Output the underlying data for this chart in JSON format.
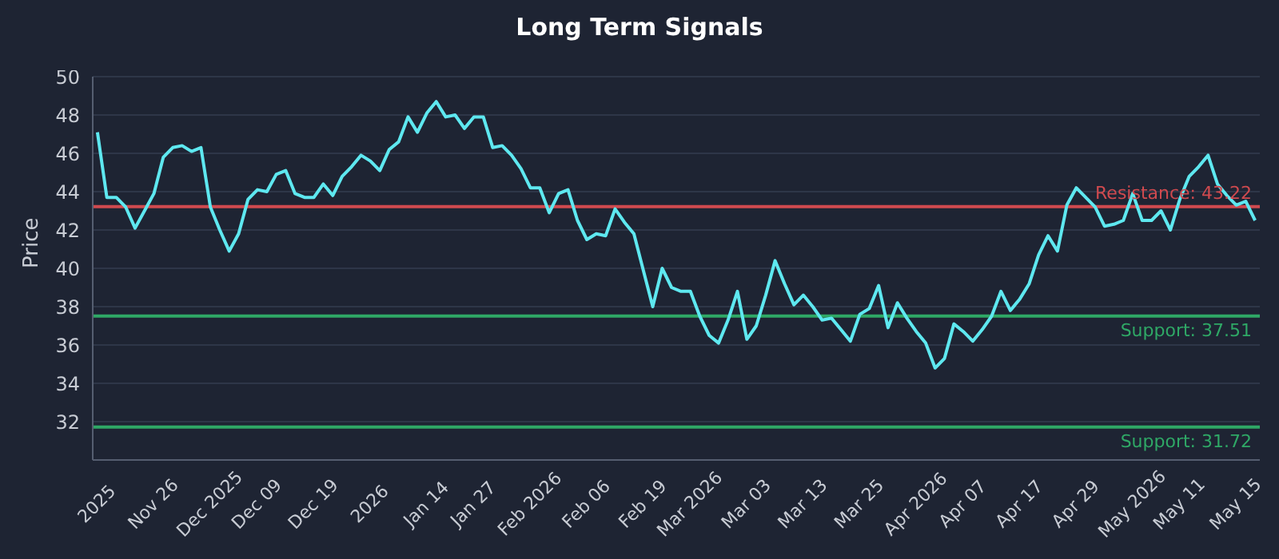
{
  "chart_data": {
    "type": "line",
    "title": "Long Term Signals",
    "ylabel": "Price",
    "categories": [
      "2025",
      null,
      null,
      null,
      null,
      null,
      "Nov 26",
      null,
      null,
      null,
      null,
      null,
      "Dec 2025",
      null,
      null,
      null,
      null,
      "Dec 09",
      null,
      null,
      null,
      null,
      null,
      "Dec 19",
      null,
      null,
      null,
      null,
      null,
      "2026",
      null,
      null,
      null,
      null,
      null,
      "Jan 14",
      null,
      null,
      null,
      null,
      "Jan 27",
      null,
      null,
      null,
      null,
      null,
      "Feb 2026",
      null,
      null,
      null,
      null,
      null,
      "Feb 06",
      null,
      null,
      null,
      null,
      null,
      "Feb 19",
      null,
      null,
      null,
      null,
      "Mar 2026",
      null,
      null,
      null,
      null,
      null,
      "Mar 03",
      null,
      null,
      null,
      null,
      null,
      "Mar 13",
      null,
      null,
      null,
      null,
      null,
      "Mar 25",
      null,
      null,
      null,
      null,
      null,
      "Apr 2026",
      null,
      null,
      null,
      null,
      "Apr 07",
      null,
      null,
      null,
      null,
      null,
      "Apr 17",
      null,
      null,
      null,
      null,
      null,
      "Apr 29",
      null,
      null,
      null,
      null,
      null,
      "May 2026",
      null,
      null,
      null,
      null,
      "May 11",
      null,
      null,
      null,
      null,
      null,
      "May 15",
      null,
      null
    ],
    "series": [
      {
        "color": "#5ee8f0",
        "values": [
          47.1,
          43.7,
          43.7,
          43.2,
          42.1,
          43.0,
          43.9,
          45.8,
          46.3,
          46.4,
          46.1,
          46.3,
          43.2,
          42.0,
          40.9,
          41.8,
          43.6,
          44.1,
          44.0,
          44.9,
          45.1,
          43.9,
          43.7,
          43.7,
          44.4,
          43.8,
          44.8,
          45.3,
          45.9,
          45.6,
          45.1,
          46.2,
          46.6,
          47.9,
          47.1,
          48.1,
          48.7,
          47.9,
          48.0,
          47.3,
          47.9,
          47.9,
          46.3,
          46.4,
          45.9,
          45.2,
          44.2,
          44.2,
          42.9,
          43.9,
          44.1,
          42.5,
          41.5,
          41.8,
          41.7,
          43.1,
          42.4,
          41.8,
          39.9,
          38.0,
          40.0,
          39.0,
          38.8,
          38.8,
          37.5,
          36.5,
          36.1,
          37.3,
          38.8,
          36.3,
          37.0,
          38.6,
          40.4,
          39.2,
          38.1,
          38.6,
          38.0,
          37.3,
          37.4,
          36.8,
          36.2,
          37.6,
          37.9,
          39.1,
          36.9,
          38.2,
          37.4,
          36.7,
          36.1,
          34.8,
          35.3,
          37.1,
          36.7,
          36.2,
          36.8,
          37.5,
          38.8,
          37.8,
          38.4,
          39.2,
          40.7,
          41.7,
          40.9,
          43.3,
          44.2,
          43.7,
          43.2,
          42.2,
          42.3,
          42.5,
          43.9,
          42.5,
          42.5,
          43.0,
          42.0,
          43.6,
          44.8,
          45.3,
          45.9,
          44.4,
          43.8,
          43.3,
          43.5,
          42.5
        ]
      }
    ],
    "ylim": [
      30,
      50
    ],
    "yticks": [
      32,
      34,
      36,
      38,
      40,
      42,
      44,
      46,
      48,
      50
    ],
    "grid": "y",
    "marker": "none",
    "line_style": "solid",
    "ref_lines": [
      {
        "axis": "y",
        "value": 43.22,
        "label": "Resistance: 43.22",
        "color": "#d04a4f"
      },
      {
        "axis": "y",
        "value": 37.51,
        "label": "Support: 37.51",
        "color": "#2fa866"
      },
      {
        "axis": "y",
        "value": 31.72,
        "label": "Support: 31.72",
        "color": "#2fa866"
      }
    ]
  }
}
